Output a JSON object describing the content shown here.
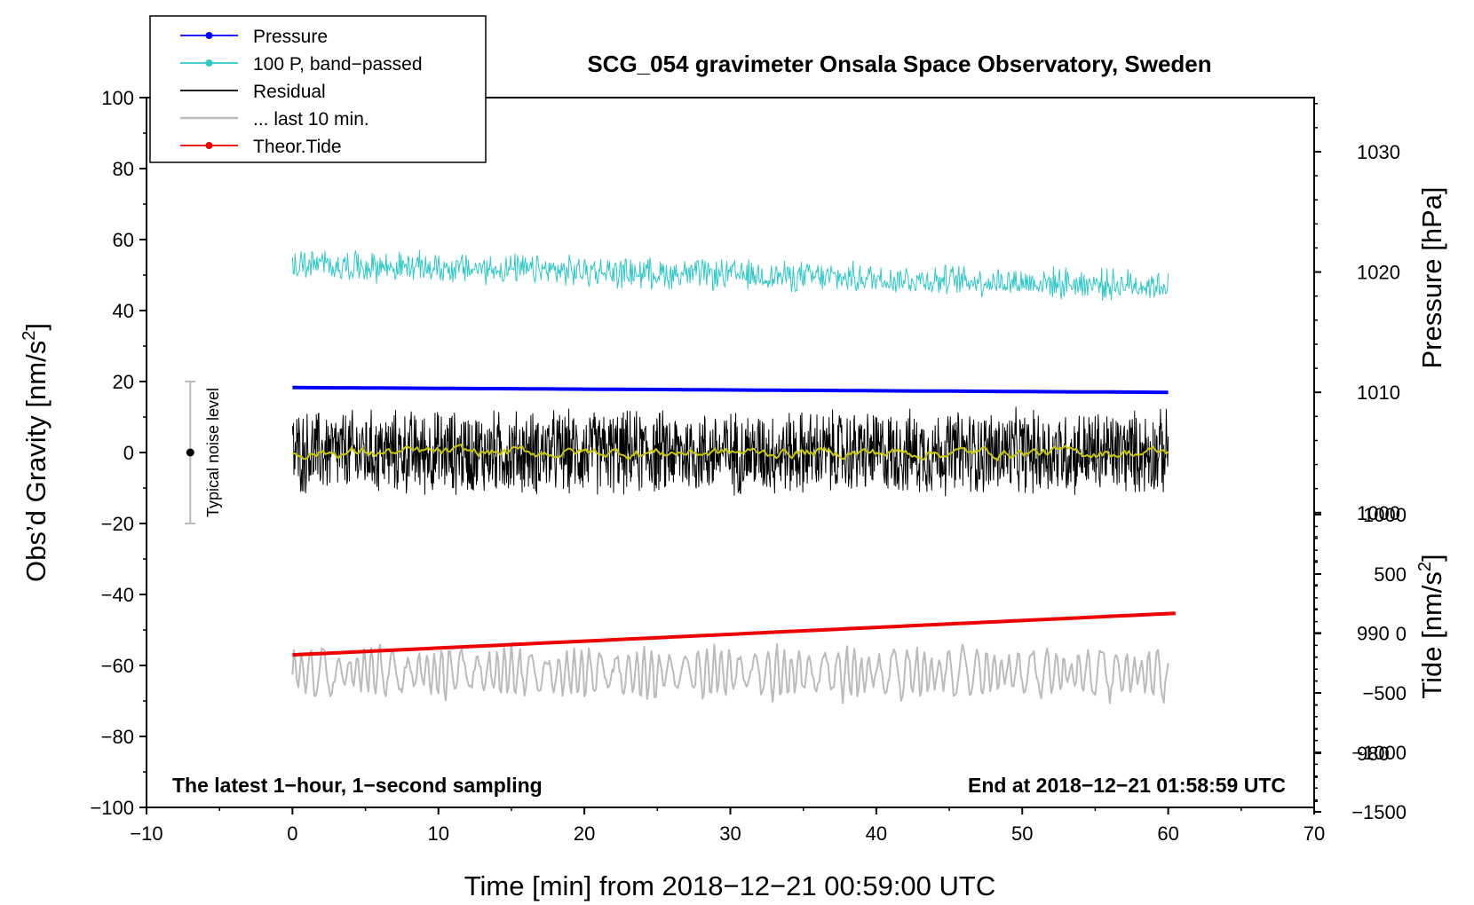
{
  "chart_data": {
    "type": "line",
    "title": "SCG_054 gravimeter Onsala Space Observatory, Sweden",
    "xlabel": "Time [min] from 2018−12−21 00:59:00 UTC",
    "ylabel": "Obs’d Gravity [nm/s²]",
    "ylabel_parts": [
      "Obs’d Gravity [nm/s",
      "2",
      "]"
    ],
    "y2label_pressure": "Pressure [hPa]",
    "y2label_tide_parts": [
      "Tide [nm/s",
      "2",
      "]"
    ],
    "xlim": [
      -10,
      70
    ],
    "ylim": [
      -100,
      100
    ],
    "pressure_axis_range": [
      975.5,
      1034.5
    ],
    "tide_axis_range": [
      -1500,
      1000
    ],
    "x_ticks": [
      -10,
      0,
      10,
      20,
      30,
      40,
      50,
      60,
      70
    ],
    "x_tick_labels": [
      "−10",
      "0",
      "10",
      "20",
      "30",
      "40",
      "50",
      "60",
      "70"
    ],
    "y_ticks": [
      100,
      80,
      60,
      40,
      20,
      0,
      -20,
      -40,
      -60,
      -80,
      -100
    ],
    "y_tick_labels": [
      "100",
      "80",
      "60",
      "40",
      "20",
      "0",
      "−20",
      "−40",
      "−60",
      "−80",
      "−100"
    ],
    "pressure_ticks": [
      1030,
      1020,
      1010,
      1000,
      990,
      980
    ],
    "pressure_tick_labels": [
      "1030",
      "1020",
      "1010",
      "1000",
      "990",
      "980"
    ],
    "tide_ticks": [
      1000,
      500,
      0,
      -500,
      -1000,
      -1500
    ],
    "tide_tick_labels": [
      "1000",
      "500",
      "0",
      "−500",
      "−1000",
      "−1500"
    ],
    "legend": [
      {
        "label": "Pressure",
        "color": "#0000ff",
        "marker": true
      },
      {
        "label": "100 P, band−passed",
        "color": "#30c8c8",
        "marker": true
      },
      {
        "label": "Residual",
        "color": "#000000",
        "marker": false
      },
      {
        "label": "... last 10 min.",
        "color": "#bbbbbb",
        "marker": false
      },
      {
        "label": "Theor.Tide",
        "color": "#ee0000",
        "marker": true
      }
    ],
    "series": [
      {
        "name": "Pressure",
        "color": "#0000ff",
        "axis": "pressure_hPa",
        "x_range": [
          0,
          60
        ],
        "start": 1010.4,
        "end": 1010.0
      },
      {
        "name": "100 P, band-passed",
        "color": "#30c8c8",
        "axis": "gravity",
        "x_range": [
          0,
          60
        ],
        "start": 53,
        "end": 47,
        "noise_amplitude": 4.5
      },
      {
        "name": "Residual",
        "color": "#000000",
        "axis": "gravity",
        "x_range": [
          0,
          60
        ],
        "mean": 0,
        "noise_amplitude": 12
      },
      {
        "name": "Residual smoothed",
        "color": "#c8c800",
        "axis": "gravity",
        "x_range": [
          0,
          60
        ],
        "mean": 0,
        "noise_amplitude": 2
      },
      {
        "name": "... last 10 min.",
        "color": "#bbbbbb",
        "axis": "gravity",
        "x_range": [
          0,
          60
        ],
        "mean": -62,
        "noise_amplitude": 7
      },
      {
        "name": "Theor.Tide",
        "color": "#ee0000",
        "axis": "tide_nm_s2",
        "x_range": [
          0,
          60.5
        ],
        "start": -180,
        "end": 170
      }
    ],
    "noise_bar": {
      "label": "Typical noise level",
      "x": -7,
      "center": 0,
      "low": -20,
      "high": 20
    },
    "annotations": {
      "left": "The latest 1−hour, 1−second sampling",
      "right": "End at 2018−12−21 01:58:59 UTC"
    }
  }
}
